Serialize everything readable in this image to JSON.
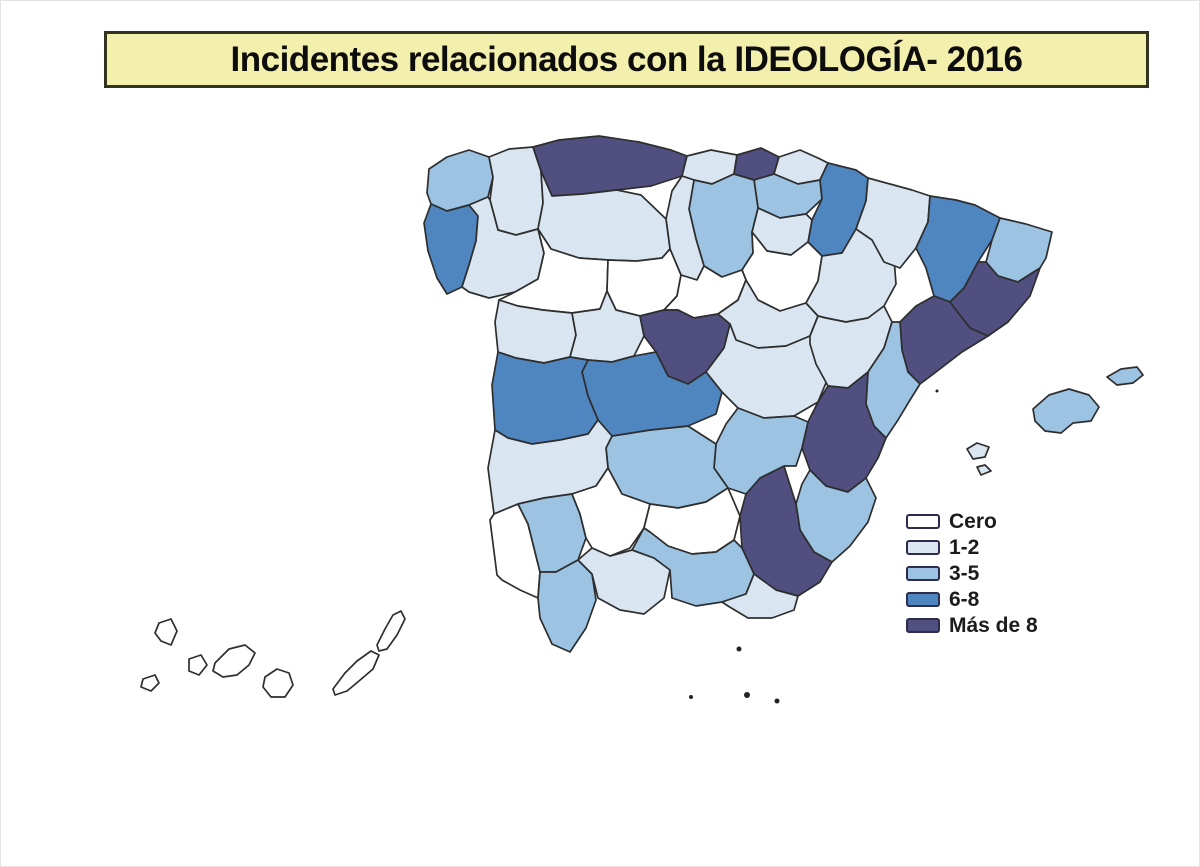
{
  "title": {
    "text": "Incidentes relacionados con la IDEOLOGÍA- 2016"
  },
  "legend": {
    "items": [
      {
        "label": "Cero",
        "category": "cero",
        "color": "#ffffff"
      },
      {
        "label": "1-2",
        "category": "1-2",
        "color": "#d9e6f2"
      },
      {
        "label": "3-5",
        "category": "3-5",
        "color": "#9cc3e2"
      },
      {
        "label": "6-8",
        "category": "6-8",
        "color": "#4f86c0"
      },
      {
        "label": "Más de 8",
        "category": "mas-de-8",
        "color": "#514f80"
      }
    ]
  },
  "map": {
    "country": "España",
    "border_color": "#2e2e2e",
    "areas": [
      {
        "id": "coruna",
        "name": "A Coruña",
        "category": "3-5"
      },
      {
        "id": "lugo",
        "name": "Lugo",
        "category": "1-2"
      },
      {
        "id": "pontevedra",
        "name": "Pontevedra",
        "category": "6-8"
      },
      {
        "id": "ourense",
        "name": "Ourense",
        "category": "1-2"
      },
      {
        "id": "asturias",
        "name": "Asturias",
        "category": "mas-de-8"
      },
      {
        "id": "cantabria",
        "name": "Cantabria",
        "category": "1-2"
      },
      {
        "id": "vizcaya",
        "name": "Bizkaia",
        "category": "mas-de-8"
      },
      {
        "id": "gipuzkoa",
        "name": "Gipuzkoa",
        "category": "1-2"
      },
      {
        "id": "alava",
        "name": "Álava",
        "category": "3-5"
      },
      {
        "id": "navarra",
        "name": "Navarra",
        "category": "6-8"
      },
      {
        "id": "rioja",
        "name": "La Rioja",
        "category": "1-2"
      },
      {
        "id": "burgos",
        "name": "Burgos",
        "category": "3-5"
      },
      {
        "id": "palencia",
        "name": "Palencia",
        "category": "1-2"
      },
      {
        "id": "leon",
        "name": "León",
        "category": "1-2"
      },
      {
        "id": "zamora",
        "name": "Zamora",
        "category": "cero"
      },
      {
        "id": "valladolid",
        "name": "Valladolid",
        "category": "cero"
      },
      {
        "id": "soria",
        "name": "Soria",
        "category": "cero"
      },
      {
        "id": "segovia",
        "name": "Segovia",
        "category": "cero"
      },
      {
        "id": "salamanca",
        "name": "Salamanca",
        "category": "1-2"
      },
      {
        "id": "avila",
        "name": "Ávila",
        "category": "1-2"
      },
      {
        "id": "madrid",
        "name": "Madrid",
        "category": "mas-de-8"
      },
      {
        "id": "guadalajara",
        "name": "Guadalajara",
        "category": "1-2"
      },
      {
        "id": "cuenca",
        "name": "Cuenca",
        "category": "1-2"
      },
      {
        "id": "zaragoza",
        "name": "Zaragoza",
        "category": "1-2"
      },
      {
        "id": "huesca",
        "name": "Huesca",
        "category": "1-2"
      },
      {
        "id": "lleida",
        "name": "Lleida",
        "category": "6-8"
      },
      {
        "id": "girona",
        "name": "Girona",
        "category": "3-5"
      },
      {
        "id": "barcelona",
        "name": "Barcelona",
        "category": "mas-de-8"
      },
      {
        "id": "tarragona",
        "name": "Tarragona",
        "category": "mas-de-8"
      },
      {
        "id": "teruel",
        "name": "Teruel",
        "category": "1-2"
      },
      {
        "id": "castellon",
        "name": "Castellón",
        "category": "3-5"
      },
      {
        "id": "valencia",
        "name": "Valencia",
        "category": "mas-de-8"
      },
      {
        "id": "alicante",
        "name": "Alicante",
        "category": "3-5"
      },
      {
        "id": "murcia",
        "name": "Murcia",
        "category": "mas-de-8"
      },
      {
        "id": "albacete",
        "name": "Albacete",
        "category": "3-5"
      },
      {
        "id": "ciudadreal",
        "name": "Ciudad Real",
        "category": "3-5"
      },
      {
        "id": "toledo",
        "name": "Toledo",
        "category": "6-8"
      },
      {
        "id": "caceres",
        "name": "Cáceres",
        "category": "6-8"
      },
      {
        "id": "badajoz",
        "name": "Badajoz",
        "category": "1-2"
      },
      {
        "id": "huelva",
        "name": "Huelva",
        "category": "cero"
      },
      {
        "id": "sevilla",
        "name": "Sevilla",
        "category": "3-5"
      },
      {
        "id": "cadiz",
        "name": "Cádiz",
        "category": "3-5"
      },
      {
        "id": "cordoba",
        "name": "Córdoba",
        "category": "cero"
      },
      {
        "id": "malaga",
        "name": "Málaga",
        "category": "1-2"
      },
      {
        "id": "jaen",
        "name": "Jaén",
        "category": "cero"
      },
      {
        "id": "granada",
        "name": "Granada",
        "category": "3-5"
      },
      {
        "id": "almeria",
        "name": "Almería",
        "category": "1-2"
      },
      {
        "id": "mallorca",
        "name": "Mallorca",
        "category": "3-5"
      },
      {
        "id": "menorca",
        "name": "Menorca",
        "category": "3-5"
      },
      {
        "id": "ibiza",
        "name": "Ibiza",
        "category": "1-2"
      },
      {
        "id": "formentera",
        "name": "Formentera",
        "category": "1-2"
      },
      {
        "id": "lapalma",
        "name": "La Palma",
        "category": "cero"
      },
      {
        "id": "hierro",
        "name": "El Hierro",
        "category": "cero"
      },
      {
        "id": "gomera",
        "name": "La Gomera",
        "category": "cero"
      },
      {
        "id": "tenerife",
        "name": "Tenerife",
        "category": "cero"
      },
      {
        "id": "grancanaria",
        "name": "Gran Canaria",
        "category": "cero"
      },
      {
        "id": "fuerteventura",
        "name": "Fuerteventura",
        "category": "cero"
      },
      {
        "id": "lanzarote",
        "name": "Lanzarote",
        "category": "cero"
      }
    ]
  },
  "chart_data": {
    "type": "choropleth",
    "title": "Incidentes relacionados con la IDEOLOGÍA- 2016",
    "legend_categories": [
      "Cero",
      "1-2",
      "3-5",
      "6-8",
      "Más de 8"
    ],
    "legend_position": "right-middle",
    "note": "Spain provinces shaded by number of ideology-related incidents, 2016"
  }
}
